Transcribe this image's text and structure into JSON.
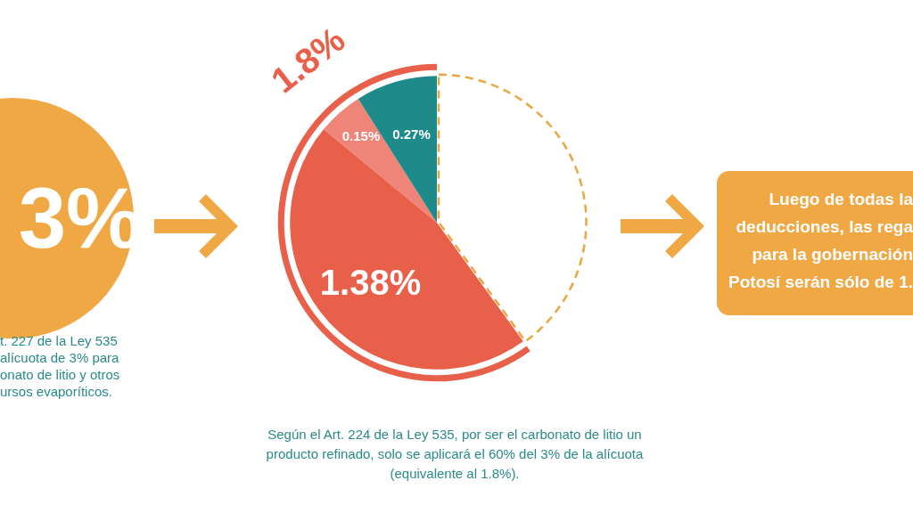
{
  "chart_data": {
    "type": "pie",
    "categories": [
      null,
      null,
      null,
      null
    ],
    "values": [
      1.2,
      1.38,
      0.15,
      0.27
    ],
    "colors": [
      "#ffffff",
      "#e8604a",
      "#ef8478",
      "#1f8a8a"
    ],
    "value_labels": [
      null,
      "1.38%",
      "0.15%",
      "0.27%"
    ],
    "annotations": [
      "3%",
      "t. 227 de la Ley 535\nalícuota de 3% para\nonato de litio y otros\nursos evaporíticos.",
      "1.8%",
      "Según el Art. 224 de la Ley 535, por ser el carbonato de litio un\nproducto refinado, solo se aplicará el 60% del 3% de la alícuota\n(equivalente al 1.8%).",
      "Luego de todas la\ndeducciones, las rega\npara la gobernación\nPotosí serán sólo de 1."
    ]
  }
}
